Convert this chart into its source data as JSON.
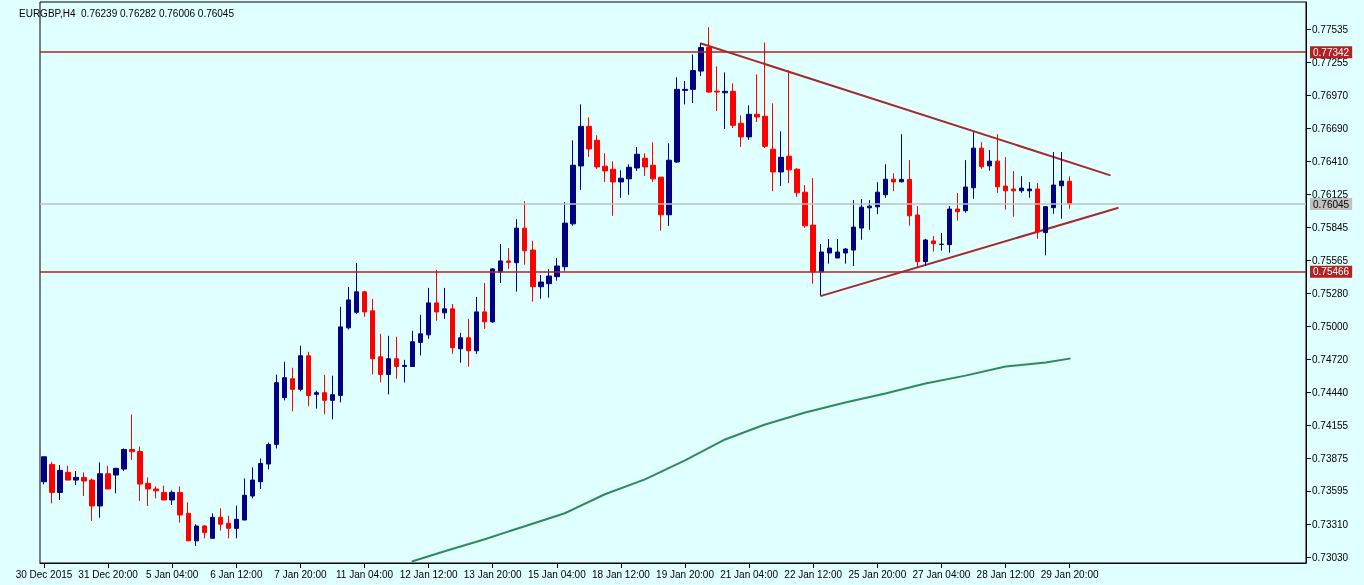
{
  "chart_data": {
    "type": "candlestick",
    "title": "EURGBP,H4  0.76239 0.76282 0.76006 0.76045",
    "categories": [
      "30 Dec 2015",
      null,
      null,
      null,
      null,
      null,
      null,
      null,
      "31 Dec 20:00",
      null,
      null,
      null,
      null,
      null,
      null,
      null,
      "5 Jan 04:00",
      null,
      null,
      null,
      null,
      null,
      null,
      null,
      "6 Jan 12:00",
      null,
      null,
      null,
      null,
      null,
      null,
      null,
      "7 Jan 20:00",
      null,
      null,
      null,
      null,
      null,
      null,
      null,
      "11 Jan 04:00",
      null,
      null,
      null,
      null,
      null,
      null,
      null,
      "12 Jan 12:00",
      null,
      null,
      null,
      null,
      null,
      null,
      null,
      "13 Jan 20:00",
      null,
      null,
      null,
      null,
      null,
      null,
      null,
      "15 Jan 04:00",
      null,
      null,
      null,
      null,
      null,
      null,
      null,
      "18 Jan 12:00",
      null,
      null,
      null,
      null,
      null,
      null,
      null,
      "19 Jan 20:00",
      null,
      null,
      null,
      null,
      null,
      null,
      null,
      "21 Jan 04:00",
      null,
      null,
      null,
      null,
      null,
      null,
      null,
      "22 Jan 12:00",
      null,
      null,
      null,
      null,
      null,
      null,
      null,
      "25 Jan 20:00",
      null,
      null,
      null,
      null,
      null,
      null,
      null,
      "27 Jan 04:00",
      null,
      null,
      null,
      null,
      null,
      null,
      null,
      "28 Jan 12:00",
      null,
      null,
      null,
      null,
      null,
      null,
      null,
      "29 Jan 20:00",
      null,
      null,
      null,
      null,
      null,
      null,
      null,
      null,
      null,
      null,
      null,
      null,
      null,
      null,
      null,
      null,
      null,
      null,
      null,
      null,
      null,
      null,
      null,
      null,
      null,
      null,
      null,
      null,
      null
    ],
    "ohlc": [
      [
        0.73674,
        0.73887,
        0.73651,
        0.73887
      ],
      [
        0.73822,
        0.73844,
        0.73489,
        0.73583
      ],
      [
        0.73583,
        0.73816,
        0.73518,
        0.73771
      ],
      [
        0.73754,
        0.7381,
        0.73688,
        0.73688
      ],
      [
        0.73688,
        0.73765,
        0.73646,
        0.73711
      ],
      [
        0.73711,
        0.73754,
        0.73552,
        0.7368
      ],
      [
        0.73688,
        0.73702,
        0.73339,
        0.73467
      ],
      [
        0.73467,
        0.73839,
        0.73367,
        0.73742
      ],
      [
        0.73742,
        0.7381,
        0.73612,
        0.73612
      ],
      [
        0.73731,
        0.73793,
        0.73575,
        0.73788
      ],
      [
        0.73782,
        0.73958,
        0.73765,
        0.73949
      ],
      [
        0.73949,
        0.74248,
        0.73859,
        0.7393
      ],
      [
        0.73932,
        0.73975,
        0.73509,
        0.73654
      ],
      [
        0.7366,
        0.73711,
        0.73467,
        0.73612
      ],
      [
        0.73612,
        0.73634,
        0.73532,
        0.73596
      ],
      [
        0.73583,
        0.7364,
        0.73518,
        0.73518
      ],
      [
        0.73518,
        0.736,
        0.73475,
        0.73583
      ],
      [
        0.73583,
        0.73634,
        0.73325,
        0.7339
      ],
      [
        0.73404,
        0.73498,
        0.73169,
        0.73169
      ],
      [
        0.73169,
        0.73311,
        0.73126,
        0.73296
      ],
      [
        0.73296,
        0.73305,
        0.73191,
        0.73239
      ],
      [
        0.73191,
        0.73404,
        0.73186,
        0.7337
      ],
      [
        0.7337,
        0.73447,
        0.73257,
        0.73311
      ],
      [
        0.73319,
        0.73384,
        0.73191,
        0.73276
      ],
      [
        0.73276,
        0.7347,
        0.73191,
        0.73353
      ],
      [
        0.73347,
        0.73702,
        0.73347,
        0.73558
      ],
      [
        0.73552,
        0.73796,
        0.73532,
        0.73688
      ],
      [
        0.73674,
        0.73873,
        0.73612,
        0.7383
      ],
      [
        0.73825,
        0.74009,
        0.73779,
        0.73992
      ],
      [
        0.73993,
        0.74588,
        0.73958,
        0.7452
      ],
      [
        0.74392,
        0.74698,
        0.74369,
        0.74562
      ],
      [
        0.74553,
        0.74647,
        0.74275,
        0.74463
      ],
      [
        0.74463,
        0.74835,
        0.74445,
        0.74749
      ],
      [
        0.74749,
        0.74783,
        0.74318,
        0.74411
      ],
      [
        0.7442,
        0.74451,
        0.74298,
        0.74434
      ],
      [
        0.74434,
        0.74587,
        0.7425,
        0.74369
      ],
      [
        0.74369,
        0.74579,
        0.74207,
        0.74417
      ],
      [
        0.74411,
        0.75167,
        0.74352,
        0.74996
      ],
      [
        0.74988,
        0.75337,
        0.74974,
        0.75226
      ],
      [
        0.75121,
        0.75542,
        0.75107,
        0.75295
      ],
      [
        0.75295,
        0.75303,
        0.75082,
        0.75124
      ],
      [
        0.75133,
        0.75235,
        0.7459,
        0.74724
      ],
      [
        0.74741,
        0.74937,
        0.74522,
        0.7459
      ],
      [
        0.7459,
        0.7492,
        0.7442,
        0.74724
      ],
      [
        0.74724,
        0.74911,
        0.74553,
        0.74658
      ],
      [
        0.74658,
        0.74715,
        0.74522,
        0.74667
      ],
      [
        0.74658,
        0.74962,
        0.74658,
        0.74869
      ],
      [
        0.74863,
        0.75099,
        0.74752,
        0.74937
      ],
      [
        0.74928,
        0.75329,
        0.74894,
        0.75201
      ],
      [
        0.75201,
        0.75482,
        0.75048,
        0.75124
      ],
      [
        0.75116,
        0.75329,
        0.75065,
        0.7515
      ],
      [
        0.7515,
        0.75192,
        0.74766,
        0.74818
      ],
      [
        0.74809,
        0.74945,
        0.7469,
        0.74903
      ],
      [
        0.74903,
        0.75065,
        0.74656,
        0.74792
      ],
      [
        0.74792,
        0.75252,
        0.74766,
        0.75124
      ],
      [
        0.75124,
        0.75371,
        0.74979,
        0.75039
      ],
      [
        0.75039,
        0.75499,
        0.75031,
        0.75491
      ],
      [
        0.75465,
        0.75704,
        0.75371,
        0.75559
      ],
      [
        0.75559,
        0.7567,
        0.75491,
        0.75547
      ],
      [
        0.75544,
        0.75916,
        0.75297,
        0.75839
      ],
      [
        0.75839,
        0.76069,
        0.75527,
        0.75646
      ],
      [
        0.75652,
        0.75731,
        0.75212,
        0.75339
      ],
      [
        0.75339,
        0.75439,
        0.75237,
        0.75379
      ],
      [
        0.75365,
        0.7549,
        0.75246,
        0.7543
      ],
      [
        0.75425,
        0.75584,
        0.75391,
        0.75516
      ],
      [
        0.7551,
        0.76061,
        0.75476,
        0.75882
      ],
      [
        0.75876,
        0.76589,
        0.75859,
        0.76376
      ],
      [
        0.7637,
        0.76896,
        0.76166,
        0.76708
      ],
      [
        0.76708,
        0.76785,
        0.76447,
        0.76515
      ],
      [
        0.76589,
        0.76632,
        0.76345,
        0.76362
      ],
      [
        0.76368,
        0.76478,
        0.76234,
        0.76328
      ],
      [
        0.76342,
        0.7641,
        0.75944,
        0.76234
      ],
      [
        0.76234,
        0.76333,
        0.76098,
        0.76265
      ],
      [
        0.7626,
        0.76385,
        0.76123,
        0.76359
      ],
      [
        0.76353,
        0.76532,
        0.76328,
        0.7647
      ],
      [
        0.76436,
        0.76478,
        0.76285,
        0.76362
      ],
      [
        0.76376,
        0.76572,
        0.76234,
        0.7626
      ],
      [
        0.76274,
        0.76274,
        0.75817,
        0.75953
      ],
      [
        0.75953,
        0.76564,
        0.75859,
        0.76419
      ],
      [
        0.76404,
        0.77126,
        0.76396,
        0.77024
      ],
      [
        0.77015,
        0.77095,
        0.76896,
        0.77024
      ],
      [
        0.77024,
        0.77322,
        0.76907,
        0.77185
      ],
      [
        0.7718,
        0.77418,
        0.77137,
        0.77381
      ],
      [
        0.77381,
        0.77555,
        0.76995,
        0.77001
      ],
      [
        0.77009,
        0.7722,
        0.76839,
        0.77001
      ],
      [
        0.76995,
        0.77169,
        0.76686,
        0.77007
      ],
      [
        0.77007,
        0.77075,
        0.76694,
        0.76717
      ],
      [
        0.76734,
        0.76802,
        0.76532,
        0.76618
      ],
      [
        0.76618,
        0.76887,
        0.76592,
        0.76811
      ],
      [
        0.76811,
        0.77152,
        0.76745,
        0.76788
      ],
      [
        0.76794,
        0.77424,
        0.76524,
        0.76538
      ],
      [
        0.76513,
        0.76905,
        0.76155,
        0.76319
      ],
      [
        0.76319,
        0.76666,
        0.762,
        0.76444
      ],
      [
        0.76453,
        0.77186,
        0.76223,
        0.76337
      ],
      [
        0.76342,
        0.76351,
        0.76106,
        0.76141
      ],
      [
        0.76146,
        0.76206,
        0.75842,
        0.75859
      ],
      [
        0.75865,
        0.76266,
        0.75365,
        0.75467
      ],
      [
        0.75467,
        0.75703,
        0.75263,
        0.75635
      ],
      [
        0.75627,
        0.75746,
        0.75536,
        0.75669
      ],
      [
        0.75584,
        0.75746,
        0.75584,
        0.75635
      ],
      [
        0.75627,
        0.75669,
        0.75536,
        0.75661
      ],
      [
        0.75652,
        0.76078,
        0.75516,
        0.75848
      ],
      [
        0.7584,
        0.76087,
        0.7574,
        0.76018
      ],
      [
        0.76013,
        0.76078,
        0.75825,
        0.76027
      ],
      [
        0.76021,
        0.76231,
        0.75959,
        0.76146
      ],
      [
        0.76124,
        0.76385,
        0.76098,
        0.76257
      ],
      [
        0.76257,
        0.76308,
        0.76155,
        0.76234
      ],
      [
        0.76235,
        0.76641,
        0.76229,
        0.76255
      ],
      [
        0.76255,
        0.7642,
        0.7586,
        0.75945
      ],
      [
        0.75951,
        0.76028,
        0.75502,
        0.75553
      ],
      [
        0.75553,
        0.75747,
        0.75519,
        0.75738
      ],
      [
        0.7573,
        0.75772,
        0.75639,
        0.75707
      ],
      [
        0.75701,
        0.75798,
        0.75647,
        0.75701
      ],
      [
        0.75698,
        0.76028,
        0.7563,
        0.76002
      ],
      [
        0.76002,
        0.76139,
        0.75903,
        0.75979
      ],
      [
        0.75988,
        0.7642,
        0.75971,
        0.7619
      ],
      [
        0.76184,
        0.76658,
        0.7609,
        0.76522
      ],
      [
        0.76522,
        0.76573,
        0.76346,
        0.76363
      ],
      [
        0.76371,
        0.76505,
        0.76329,
        0.76411
      ],
      [
        0.76411,
        0.76641,
        0.76141,
        0.76192
      ],
      [
        0.76198,
        0.76445,
        0.75997,
        0.76158
      ],
      [
        0.76173,
        0.76326,
        0.75937,
        0.76158
      ],
      [
        0.76158,
        0.76283,
        0.76141,
        0.76181
      ],
      [
        0.76158,
        0.76232,
        0.76099,
        0.76173
      ],
      [
        0.76173,
        0.76224,
        0.75749,
        0.75806
      ],
      [
        0.75801,
        0.76028,
        0.75607,
        0.76022
      ],
      [
        0.76014,
        0.76488,
        0.75962,
        0.76207
      ],
      [
        0.76201,
        0.76488,
        0.7592,
        0.76241
      ],
      [
        0.76239,
        0.76282,
        0.76006,
        0.76045
      ],
      null,
      null,
      null,
      null,
      null,
      null,
      null,
      null,
      null,
      null,
      null,
      null,
      null,
      null,
      null,
      null,
      null,
      null,
      null,
      null,
      null,
      null,
      null,
      null,
      null,
      null,
      null,
      null,
      null
    ],
    "colors": [
      "#000080",
      "#ff0000",
      "#000080",
      "#ff0000",
      "#000080",
      "#ff0000",
      "#ff0000",
      "#000080",
      "#ff0000",
      "#000080",
      "#000080",
      "#ff0000",
      "#ff0000",
      "#ff0000",
      "#ff0000",
      "#ff0000",
      "#000080",
      "#ff0000",
      "#ff0000",
      "#000080",
      "#ff0000",
      "#000080",
      "#ff0000",
      "#ff0000",
      "#000080",
      "#000080",
      "#000080",
      "#000080",
      "#000080",
      "#000080",
      "#000080",
      "#ff0000",
      "#000080",
      "#ff0000",
      "#000080",
      "#ff0000",
      "#000080",
      "#000080",
      "#000080",
      "#000080",
      "#ff0000",
      "#ff0000",
      "#ff0000",
      "#000080",
      "#ff0000",
      "#000080",
      "#000080",
      "#000080",
      "#000080",
      "#ff0000",
      "#000080",
      "#ff0000",
      "#000080",
      "#ff0000",
      "#000080",
      "#ff0000",
      "#000080",
      "#000080",
      "#ff0000",
      "#000080",
      "#ff0000",
      "#ff0000",
      "#000080",
      "#000080",
      "#000080",
      "#000080",
      "#000080",
      "#000080",
      "#ff0000",
      "#ff0000",
      "#ff0000",
      "#ff0000",
      "#000080",
      "#000080",
      "#000080",
      "#ff0000",
      "#ff0000",
      "#ff0000",
      "#000080",
      "#000080",
      "#000080",
      "#000080",
      "#000080",
      "#ff0000",
      "#ff0000",
      "#000080",
      "#ff0000",
      "#ff0000",
      "#000080",
      "#ff0000",
      "#ff0000",
      "#ff0000",
      "#000080",
      "#ff0000",
      "#ff0000",
      "#ff0000",
      "#ff0000",
      "#000080",
      "#000080",
      "#000080",
      "#000080",
      "#000080",
      "#000080",
      "#000080",
      "#000080",
      "#000080",
      "#ff0000",
      "#000080",
      "#ff0000",
      "#ff0000",
      "#000080",
      "#ff0000",
      "#000000",
      "#000080",
      "#ff0000",
      "#000080",
      "#000080",
      "#ff0000",
      "#000080",
      "#ff0000",
      "#ff0000",
      "#ff0000",
      "#000080",
      "#000080",
      "#ff0000",
      "#000080",
      "#000080",
      "#000080",
      "#ff0000",
      null,
      null,
      null,
      null,
      null,
      null,
      null,
      null,
      null,
      null,
      null,
      null,
      null,
      null,
      null,
      null,
      null,
      null,
      null,
      null,
      null,
      null,
      null,
      null,
      null,
      null,
      null,
      null,
      null
    ],
    "series": [
      {
        "type": "line",
        "color": "#2e8b57",
        "values": [
          null,
          null,
          null,
          null,
          null,
          null,
          null,
          null,
          null,
          null,
          null,
          null,
          null,
          null,
          null,
          null,
          null,
          null,
          null,
          null,
          null,
          null,
          null,
          null,
          null,
          null,
          null,
          null,
          null,
          null,
          null,
          null,
          null,
          null,
          null,
          null,
          null,
          null,
          null,
          null,
          null,
          null,
          null,
          null,
          null,
          null,
          0.72995,
          null,
          null,
          null,
          0.73081,
          null,
          null,
          null,
          null,
          0.73183,
          null,
          null,
          null,
          null,
          0.73294,
          null,
          null,
          null,
          null,
          0.73405,
          null,
          null,
          null,
          null,
          0.73567,
          null,
          null,
          null,
          null,
          0.73694,
          null,
          null,
          null,
          null,
          0.73856,
          null,
          null,
          null,
          null,
          0.74035,
          null,
          null,
          null,
          null,
          0.74163,
          null,
          null,
          null,
          null,
          0.74265,
          null,
          null,
          null,
          null,
          0.7435,
          null,
          null,
          null,
          null,
          0.74427,
          null,
          null,
          null,
          null,
          0.74512,
          null,
          null,
          null,
          null,
          0.7458,
          null,
          null,
          null,
          null,
          0.74657,
          null,
          null,
          null,
          null,
          0.74691,
          null,
          null,
          0.74725,
          null,
          null,
          null,
          null,
          null,
          null,
          null,
          null,
          null,
          null,
          null,
          null,
          null,
          null,
          null,
          null,
          null,
          null,
          null,
          null,
          null,
          null,
          null,
          null,
          null,
          null,
          null,
          null,
          null
        ]
      },
      {
        "type": "line",
        "color": "#a52a2a",
        "values": [
          null,
          null,
          null,
          null,
          null,
          null,
          null,
          null,
          null,
          null,
          null,
          null,
          null,
          null,
          null,
          null,
          null,
          null,
          null,
          null,
          null,
          null,
          null,
          null,
          null,
          null,
          null,
          null,
          null,
          null,
          null,
          null,
          null,
          null,
          null,
          null,
          null,
          null,
          null,
          null,
          null,
          null,
          null,
          null,
          null,
          null,
          null,
          null,
          null,
          null,
          null,
          null,
          null,
          null,
          null,
          null,
          null,
          null,
          null,
          null,
          null,
          null,
          null,
          null,
          null,
          null,
          null,
          null,
          null,
          null,
          null,
          null,
          null,
          null,
          null,
          null,
          null,
          null,
          null,
          null,
          null,
          null,
          0.77416,
          null,
          null,
          null,
          null,
          null,
          null,
          null,
          null,
          null,
          null,
          null,
          null,
          null,
          null,
          null,
          null,
          null,
          null,
          null,
          null,
          null,
          null,
          null,
          null,
          null,
          null,
          null,
          null,
          null,
          null,
          null,
          null,
          null,
          null,
          null,
          null,
          null,
          null,
          null,
          null,
          null,
          null,
          null,
          null,
          null,
          null,
          null,
          null,
          null,
          null,
          0.76292,
          null,
          null,
          null,
          null,
          null,
          null,
          null,
          null,
          null,
          null,
          null,
          null,
          null,
          null,
          null,
          null,
          null,
          null,
          null,
          null,
          null,
          null,
          null,
          null
        ]
      },
      {
        "type": "line",
        "color": "#a52a2a",
        "values": [
          null,
          null,
          null,
          null,
          null,
          null,
          null,
          null,
          null,
          null,
          null,
          null,
          null,
          null,
          null,
          null,
          null,
          null,
          null,
          null,
          null,
          null,
          null,
          null,
          null,
          null,
          null,
          null,
          null,
          null,
          null,
          null,
          null,
          null,
          null,
          null,
          null,
          null,
          null,
          null,
          null,
          null,
          null,
          null,
          null,
          null,
          null,
          null,
          null,
          null,
          null,
          null,
          null,
          null,
          null,
          null,
          null,
          null,
          null,
          null,
          null,
          null,
          null,
          null,
          null,
          null,
          null,
          null,
          null,
          null,
          null,
          null,
          null,
          null,
          null,
          null,
          null,
          null,
          null,
          null,
          null,
          null,
          null,
          null,
          null,
          null,
          null,
          null,
          null,
          null,
          null,
          null,
          null,
          null,
          null,
          null,
          null,
          0.75261,
          null,
          null,
          null,
          null,
          null,
          null,
          null,
          null,
          null,
          null,
          null,
          null,
          null,
          null,
          null,
          null,
          null,
          null,
          null,
          null,
          null,
          null,
          null,
          null,
          null,
          null,
          null,
          null,
          null,
          null,
          null,
          null,
          null,
          null,
          null,
          null,
          0.76011,
          null,
          null,
          null,
          null,
          null,
          null,
          null,
          null,
          null,
          null,
          null,
          null,
          null,
          null,
          null,
          null,
          null,
          null,
          null,
          null,
          null,
          null,
          null
        ]
      }
    ],
    "ref_lines": [
      {
        "axis": "y",
        "value": 0.77342,
        "label": "0.77342",
        "color": "#b22222"
      },
      {
        "axis": "y",
        "value": 0.75466,
        "label": "0.75466",
        "color": "#b22222"
      },
      {
        "axis": "y",
        "value": 0.76045,
        "label": "0.76045",
        "color": "#c0c0c0"
      }
    ],
    "ylim": [
      0.7298,
      0.7777
    ],
    "yticks": [
      {
        "value": 0.77535,
        "label": "0.77535"
      },
      {
        "value": 0.77255,
        "label": "0.77255"
      },
      {
        "value": 0.7697,
        "label": "0.76970"
      },
      {
        "value": 0.7669,
        "label": "0.76690"
      },
      {
        "value": 0.7641,
        "label": "0.76410"
      },
      {
        "value": 0.76125,
        "label": "0.76125"
      },
      {
        "value": 0.75845,
        "label": "0.75845"
      },
      {
        "value": 0.75565,
        "label": "0.75565"
      },
      {
        "value": 0.7528,
        "label": "0.75280"
      },
      {
        "value": 0.75,
        "label": "0.75000"
      },
      {
        "value": 0.7472,
        "label": "0.74720"
      },
      {
        "value": 0.7444,
        "label": "0.74440"
      },
      {
        "value": 0.74155,
        "label": "0.74155"
      },
      {
        "value": 0.73875,
        "label": "0.73875"
      },
      {
        "value": 0.73595,
        "label": "0.73595"
      },
      {
        "value": 0.7331,
        "label": "0.73310"
      },
      {
        "value": 0.7303,
        "label": "0.73030"
      }
    ],
    "grid": false,
    "marker": "none",
    "line_style": "solid"
  }
}
